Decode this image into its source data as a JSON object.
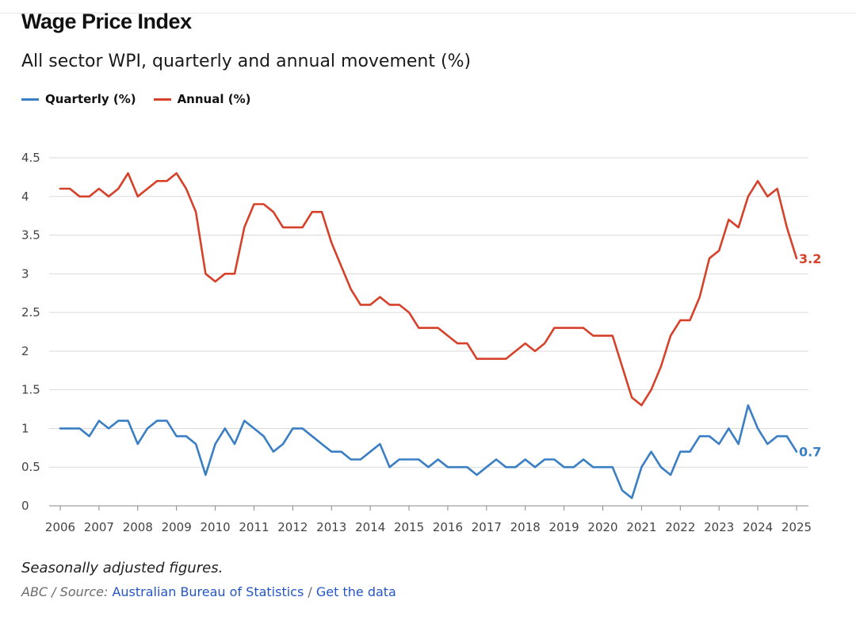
{
  "header": {
    "title": "Wage Price Index",
    "subtitle": "All sector WPI, quarterly and annual movement (%)"
  },
  "legend": [
    {
      "label": "Quarterly (%)",
      "color": "#3a7ec3"
    },
    {
      "label": "Annual (%)",
      "color": "#d6412a"
    }
  ],
  "footer": {
    "note": "Seasonally adjusted figures.",
    "source_prefix": "ABC / Source: ",
    "source_link": "Australian Bureau of Statistics",
    "separator": " / ",
    "data_link": "Get the data"
  },
  "chart_data": {
    "type": "line",
    "title": "Wage Price Index",
    "subtitle": "All sector WPI, quarterly and annual movement (%)",
    "xlabel": "",
    "ylabel": "",
    "xlim": [
      2006,
      2025
    ],
    "ylim": [
      0,
      4.5
    ],
    "yticks": [
      "0",
      "0.5",
      "1",
      "1.5",
      "2",
      "2.5",
      "3",
      "3.5",
      "4",
      "4.5"
    ],
    "yticks_values": [
      0,
      0.5,
      1,
      1.5,
      2,
      2.5,
      3,
      3.5,
      4,
      4.5
    ],
    "xticks": [
      "2006",
      "2007",
      "2008",
      "2009",
      "2010",
      "2011",
      "2012",
      "2013",
      "2014",
      "2015",
      "2016",
      "2017",
      "2018",
      "2019",
      "2020",
      "2021",
      "2022",
      "2023",
      "2024",
      "2025"
    ],
    "grid": "horizontal",
    "legend_position": "top-left",
    "start_year": 2006,
    "points_per_year": 4,
    "series": [
      {
        "name": "Quarterly (%)",
        "color": "#3a7ec3",
        "end_label": "0.7",
        "values": [
          1.0,
          1.0,
          1.0,
          0.9,
          1.1,
          1.0,
          1.1,
          1.1,
          0.8,
          1.0,
          1.1,
          1.1,
          0.9,
          0.9,
          0.8,
          0.4,
          0.8,
          1.0,
          0.8,
          1.1,
          1.0,
          0.9,
          0.7,
          0.8,
          1.0,
          1.0,
          0.9,
          0.8,
          0.7,
          0.7,
          0.6,
          0.6,
          0.7,
          0.8,
          0.5,
          0.6,
          0.6,
          0.6,
          0.5,
          0.6,
          0.5,
          0.5,
          0.5,
          0.4,
          0.5,
          0.6,
          0.5,
          0.5,
          0.6,
          0.5,
          0.6,
          0.6,
          0.5,
          0.5,
          0.6,
          0.5,
          0.5,
          0.5,
          0.2,
          0.1,
          0.5,
          0.7,
          0.5,
          0.4,
          0.7,
          0.7,
          0.9,
          0.9,
          0.8,
          1.0,
          0.8,
          1.3,
          1.0,
          0.8,
          0.9,
          0.9,
          0.7
        ]
      },
      {
        "name": "Annual (%)",
        "color": "#d6412a",
        "end_label": "3.2",
        "values": [
          4.1,
          4.1,
          4.0,
          4.0,
          4.1,
          4.0,
          4.1,
          4.3,
          4.0,
          4.1,
          4.2,
          4.2,
          4.3,
          4.1,
          3.8,
          3.0,
          2.9,
          3.0,
          3.0,
          3.6,
          3.9,
          3.9,
          3.8,
          3.6,
          3.6,
          3.6,
          3.8,
          3.8,
          3.4,
          3.1,
          2.8,
          2.6,
          2.6,
          2.7,
          2.6,
          2.6,
          2.5,
          2.3,
          2.3,
          2.3,
          2.2,
          2.1,
          2.1,
          1.9,
          1.9,
          1.9,
          1.9,
          2.0,
          2.1,
          2.0,
          2.1,
          2.3,
          2.3,
          2.3,
          2.3,
          2.2,
          2.2,
          2.2,
          1.8,
          1.4,
          1.3,
          1.5,
          1.8,
          2.2,
          2.4,
          2.4,
          2.7,
          3.2,
          3.3,
          3.7,
          3.6,
          4.0,
          4.2,
          4.0,
          4.1,
          3.6,
          3.2
        ]
      }
    ]
  }
}
